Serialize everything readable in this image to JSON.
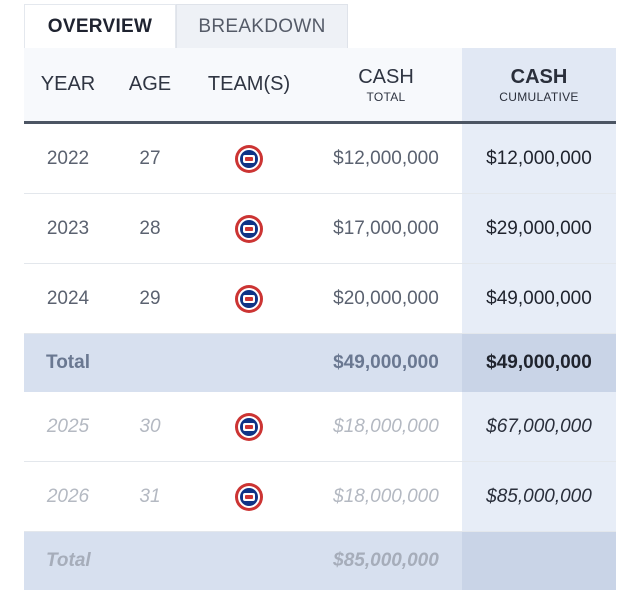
{
  "tabs": [
    {
      "label": "OVERVIEW",
      "active": true
    },
    {
      "label": "BREAKDOWN",
      "active": false
    }
  ],
  "header": {
    "year": "YEAR",
    "age": "AGE",
    "teams": "TEAM(S)",
    "cash_label": "CASH",
    "cash_sub": "TOTAL",
    "cum_label": "CASH",
    "cum_sub": "CUMULATIVE"
  },
  "rows": [
    {
      "year": "2022",
      "age": "27",
      "team_icon": "cubs-logo-icon",
      "cash": "$12,000,000",
      "cumulative": "$12,000,000"
    },
    {
      "year": "2023",
      "age": "28",
      "team_icon": "cubs-logo-icon",
      "cash": "$17,000,000",
      "cumulative": "$29,000,000"
    },
    {
      "year": "2024",
      "age": "29",
      "team_icon": "cubs-logo-icon",
      "cash": "$20,000,000",
      "cumulative": "$49,000,000"
    }
  ],
  "total1": {
    "label": "Total",
    "cash": "$49,000,000",
    "cumulative": "$49,000,000"
  },
  "future_rows": [
    {
      "year": "2025",
      "age": "30",
      "team_icon": "cubs-logo-icon",
      "cash": "$18,000,000",
      "cumulative": "$67,000,000"
    },
    {
      "year": "2026",
      "age": "31",
      "team_icon": "cubs-logo-icon",
      "cash": "$18,000,000",
      "cumulative": "$85,000,000"
    }
  ],
  "total2": {
    "label": "Total",
    "cash": "$85,000,000",
    "cumulative": ""
  },
  "colors": {
    "team_primary": "#0e3386",
    "team_secondary": "#cc3433",
    "cumulative_bg": "#e7edf7",
    "total_bg": "#d7e0ef"
  }
}
